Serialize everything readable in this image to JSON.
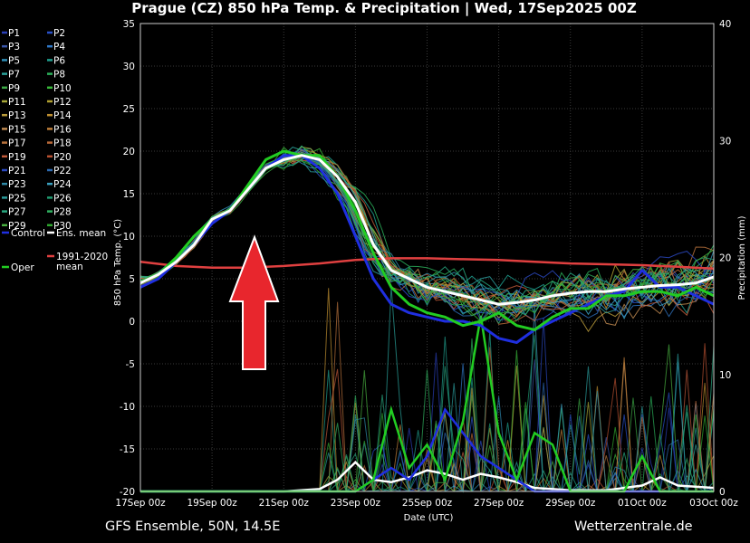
{
  "chart_data": {
    "type": "line",
    "title": "Prague  (CZ)  850 hPa Temp. & Precipitation | Wed, 17Sep2025 00Z",
    "xlabel": "Date (UTC)",
    "ylabel": "850 hPa Temp. (°C)",
    "y2label": "Precipitation (mm)",
    "x_ticks": [
      "17Sep 00z",
      "19Sep 00z",
      "21Sep 00z",
      "23Sep 00z",
      "25Sep 00z",
      "27Sep 00z",
      "29Sep 00z",
      "01Oct 00z",
      "03Oct 00z"
    ],
    "y_ticks": [
      "35",
      "30",
      "25",
      "20",
      "15",
      "10",
      "5",
      "0",
      "-5",
      "-10",
      "-15",
      "-20"
    ],
    "y2_ticks": [
      "40",
      "30",
      "20",
      "10",
      "0"
    ],
    "ylim": [
      -20,
      35
    ],
    "y2lim": [
      0,
      40
    ],
    "grid": true,
    "legend_position": "left",
    "legend": [
      {
        "name": "P1",
        "color": "#2a3fb8"
      },
      {
        "name": "P2",
        "color": "#2850c8"
      },
      {
        "name": "P3",
        "color": "#3a55a8"
      },
      {
        "name": "P4",
        "color": "#2f78c8"
      },
      {
        "name": "P5",
        "color": "#2f8fb8"
      },
      {
        "name": "P6",
        "color": "#1f9f8f"
      },
      {
        "name": "P7",
        "color": "#2aa39b"
      },
      {
        "name": "P8",
        "color": "#2bb05a"
      },
      {
        "name": "P9",
        "color": "#3ca845"
      },
      {
        "name": "P10",
        "color": "#39b83a"
      },
      {
        "name": "P11",
        "color": "#a8a838"
      },
      {
        "name": "P12",
        "color": "#b0a030"
      },
      {
        "name": "P13",
        "color": "#b89a3a"
      },
      {
        "name": "P14",
        "color": "#c09030"
      },
      {
        "name": "P15",
        "color": "#c08a50"
      },
      {
        "name": "P16",
        "color": "#c0803a"
      },
      {
        "name": "P17",
        "color": "#b8723c"
      },
      {
        "name": "P18",
        "color": "#b86838"
      },
      {
        "name": "P19",
        "color": "#c05a3a"
      },
      {
        "name": "P20",
        "color": "#b85030"
      },
      {
        "name": "P21",
        "color": "#2a48c0"
      },
      {
        "name": "P22",
        "color": "#2c6ab0"
      },
      {
        "name": "P23",
        "color": "#2f8aa8"
      },
      {
        "name": "P24",
        "color": "#3aa0c0"
      },
      {
        "name": "P25",
        "color": "#2a9a9a"
      },
      {
        "name": "P26",
        "color": "#209a70"
      },
      {
        "name": "P27",
        "color": "#28a880"
      },
      {
        "name": "P28",
        "color": "#30b060"
      },
      {
        "name": "P29",
        "color": "#48b040"
      },
      {
        "name": "P30",
        "color": "#2fa82f"
      },
      {
        "name": "Control",
        "color": "#1f2fe0"
      },
      {
        "name": "Ens. mean",
        "color": "#ffffff"
      },
      {
        "name": "Oper",
        "color": "#22cc22"
      },
      {
        "name": "1991-2020\nmean",
        "color": "#e04040"
      }
    ],
    "series_temp": [
      {
        "name": "Ens. mean",
        "color": "#ffffff",
        "x": [
          0,
          0.5,
          1,
          1.5,
          2,
          2.5,
          3,
          3.5,
          4,
          4.5,
          5,
          5.5,
          6,
          6.5,
          7,
          7.5,
          8,
          8.5,
          9,
          9.5,
          10,
          10.5,
          11,
          11.5,
          12,
          12.5,
          13,
          13.5,
          14,
          14.5,
          15,
          15.5,
          16
        ],
        "y": [
          4.5,
          5.5,
          7,
          9,
          12,
          13,
          15.5,
          18,
          19,
          19.5,
          19,
          17,
          14,
          9,
          6,
          5,
          4,
          3.5,
          3,
          2.5,
          2,
          2.2,
          2.5,
          3,
          3.3,
          3.5,
          3.5,
          3.8,
          4,
          4.2,
          4.3,
          4.5,
          5.2
        ]
      },
      {
        "name": "Control",
        "color": "#1f2fe0",
        "x": [
          0,
          0.5,
          1,
          1.5,
          2,
          2.5,
          3,
          3.5,
          4,
          4.5,
          5,
          5.5,
          6,
          6.5,
          7,
          7.5,
          8,
          8.5,
          9,
          9.5,
          10,
          10.5,
          11,
          11.5,
          12,
          12.5,
          13,
          13.5,
          14,
          14.5,
          15,
          15.5,
          16
        ],
        "y": [
          4,
          5,
          7,
          9,
          11.5,
          13,
          15.5,
          18,
          19.5,
          19.5,
          18,
          15,
          10,
          5,
          2,
          1,
          0.5,
          0,
          0,
          -0.5,
          -2,
          -2.5,
          -1,
          0,
          1,
          2,
          3,
          3.5,
          6,
          4,
          4,
          3,
          2
        ]
      },
      {
        "name": "Oper",
        "color": "#22cc22",
        "x": [
          0,
          0.5,
          1,
          1.5,
          2,
          2.5,
          3,
          3.5,
          4,
          4.5,
          5,
          5.5,
          6,
          6.5,
          7,
          7.5,
          8,
          8.5,
          9,
          9.5,
          10,
          10.5,
          11,
          11.5,
          12,
          12.5,
          13,
          13.5,
          14,
          14.5,
          15,
          15.5,
          16
        ],
        "y": [
          4.5,
          5.5,
          7.5,
          10,
          12,
          13,
          16,
          19,
          20,
          19.5,
          19.5,
          17,
          13,
          8,
          4,
          2,
          1,
          0.5,
          -0.5,
          0,
          1,
          -0.5,
          -1,
          0.5,
          1.5,
          1.5,
          3,
          3,
          3.5,
          3.5,
          3,
          4,
          3
        ]
      },
      {
        "name": "1991-2020 mean",
        "color": "#e04040",
        "x": [
          0,
          1,
          2,
          3,
          4,
          5,
          6,
          7,
          8,
          9,
          10,
          11,
          12,
          13,
          14,
          15,
          16
        ],
        "y": [
          7,
          6.5,
          6.3,
          6.3,
          6.5,
          6.8,
          7.2,
          7.4,
          7.4,
          7.3,
          7.2,
          7,
          6.8,
          6.7,
          6.6,
          6.4,
          6.2
        ]
      }
    ],
    "series_precip": [
      {
        "name": "Ens. mean",
        "color": "#ffffff",
        "x": [
          0,
          4,
          5,
          5.5,
          6,
          6.5,
          7,
          7.5,
          8,
          8.5,
          9,
          9.5,
          10,
          10.5,
          11,
          11.5,
          12,
          13,
          14,
          14.5,
          15,
          16
        ],
        "y": [
          0,
          0,
          0.2,
          1,
          2.5,
          1,
          0.8,
          1.2,
          1.8,
          1.5,
          1,
          1.5,
          1.2,
          0.8,
          0.3,
          0.2,
          0.1,
          0.1,
          0.5,
          1.2,
          0.5,
          0.3
        ]
      },
      {
        "name": "Control",
        "color": "#1f2fe0",
        "x": [
          0,
          6,
          6.5,
          7,
          7.5,
          8,
          8.5,
          9,
          9.5,
          10,
          10.5,
          11,
          11.5,
          12,
          16
        ],
        "y": [
          0,
          0,
          1,
          2,
          1,
          3,
          7,
          5,
          3,
          2,
          1,
          0,
          0,
          0,
          0
        ]
      },
      {
        "name": "Oper",
        "color": "#22cc22",
        "x": [
          0,
          6,
          6.5,
          7,
          7.5,
          8,
          8.5,
          9,
          9.5,
          10,
          10.5,
          11,
          11.5,
          12,
          12.5,
          13,
          13.5,
          14,
          14.5,
          15,
          16
        ],
        "y": [
          0,
          0,
          1,
          7,
          2,
          4,
          1,
          6,
          15,
          5,
          1,
          5,
          4,
          0,
          0,
          0,
          0,
          3,
          0,
          0,
          0
        ]
      }
    ]
  },
  "footer": {
    "left": "GFS Ensemble, 50N, 14.5E",
    "right": "Wetterzentrale.de"
  },
  "annotation": {
    "arrow_color": "#e8262d"
  }
}
